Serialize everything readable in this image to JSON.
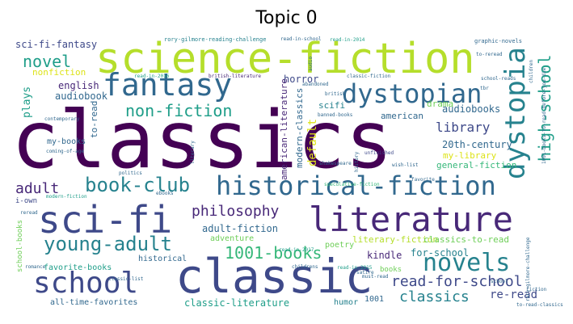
{
  "title": "Topic 0",
  "words": {
    "classics_big": "classics",
    "science_fiction": "science-fiction",
    "scifi": "sci-fi",
    "literature": "literature",
    "classic": "classic",
    "fantasy": "fantasy",
    "historical_fiction": "historical-fiction",
    "school": "school",
    "dystopian": "dystopian",
    "dystopia": "dystopia",
    "novels": "novels",
    "young_adult": "young-adult",
    "book_club": "book-club",
    "novel": "novel",
    "non_fiction": "non-fiction",
    "high_school": "high-school",
    "philosophy": "philosophy",
    "books_1001": "1001-books",
    "read_for_school": "read-for-school",
    "classics_small": "classics",
    "library": "library",
    "adult": "adult",
    "default": "default",
    "scifi_fantasy": "sci-fi-fantasy",
    "plays": "plays",
    "audiobook": "audiobook",
    "audiobooks": "audiobooks",
    "english": "english",
    "nonfiction": "nonfiction",
    "horror": "horror",
    "scifi2": "scifi",
    "drama": "drama",
    "american": "american",
    "to_read": "to-read",
    "my_books": "my-books",
    "century_20th": "20th-century",
    "my_library": "my-library",
    "general_fiction": "general-fiction",
    "american_literature": "american-literature",
    "modern_classics": "modern-classics",
    "adult_fiction": "adult-fiction",
    "adventure": "adventure",
    "literary_fiction": "literary-fiction",
    "classics_to_read": "classics-to-read",
    "for_school": "for-school",
    "kindle": "kindle",
    "re_read": "re-read",
    "classic_literature": "classic-literature",
    "all_time_favorites": "all-time-favorites",
    "favorite_books": "favorite-books",
    "historical": "historical",
    "poetry": "poetry",
    "books": "books",
    "humor": "humor",
    "n1001": "1001",
    "school_books": "school-books",
    "i_own": "i-own",
    "graphic_novels": "graphic-novels",
    "rory_gilmore": "rory-gilmore-reading-challenge",
    "read_in_school": "read-in-school",
    "read_in_2016": "read-in-2016",
    "british_literature": "british-literature",
    "to_reread": "to-reread",
    "contemporary": "contemporary",
    "coming_of_age": "coming-of-age",
    "banned_books": "banned-books",
    "school_reads": "school-reads",
    "abandoned": "abandoned",
    "british": "british",
    "children": "children",
    "read_2015": "read-in-2015",
    "unfinished": "unfinished",
    "wish_list": "wish-list",
    "shakespeare": "shakespeare",
    "favorite": "favorite",
    "ebooks": "ebooks",
    "speculative_fiction": "speculative-fiction",
    "reread": "reread",
    "politics": "politics",
    "classic_list": "classic-list",
    "romance": "romance",
    "satire": "satire",
    "to_read_classics": "to-read-classics",
    "must_read": "must-read",
    "tbr": "tbr",
    "fiction": "fiction",
    "bfyd": "1001-books-to-read-before-you-die",
    "childrens": "childrens",
    "history": "history",
    "literary": "literary",
    "read_2014": "read-in-2014",
    "rory_challenge": "rory-gilmore-challenge",
    "read_2017": "read-in-2017",
    "modern_fiction": "modern-fiction",
    "audio": "audio",
    "classic_fiction": "classic-fiction",
    "school2": "school"
  },
  "colors": {
    "dark_purple": "#440154",
    "purple": "#482878",
    "indigo": "#3e4989",
    "blue": "#31688e",
    "teal": "#26828e",
    "green_teal": "#1f9e89",
    "green": "#35b779",
    "light_green": "#6ece58",
    "lime": "#b5de2b",
    "yellow": "#dde318"
  }
}
